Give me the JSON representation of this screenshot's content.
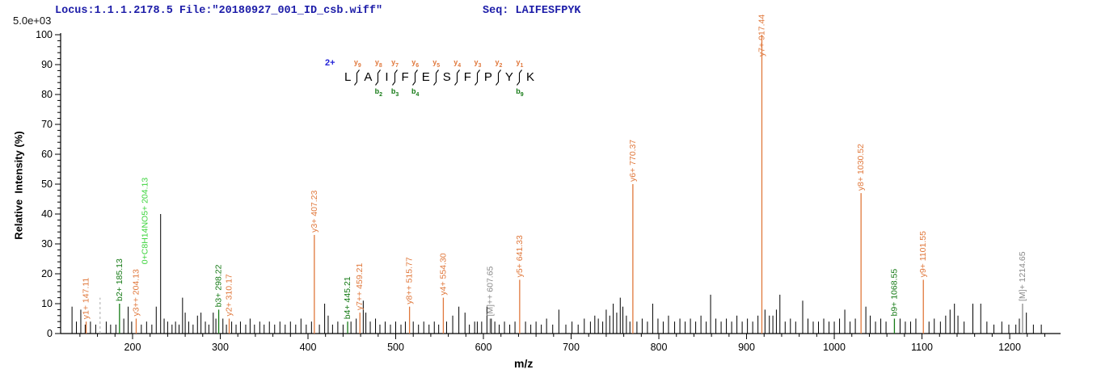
{
  "header": {
    "locus_file": "Locus:1.1.1.2178.5 File:\"20180927_001_ID_csb.wiff\"",
    "seq_label": "Seq: LAIFESFPYK",
    "base_peak_intensity": "5.0e+03"
  },
  "peptide": {
    "charge_label": "2+",
    "residues": [
      "L",
      "A",
      "I",
      "F",
      "E",
      "S",
      "F",
      "P",
      "Y",
      "K"
    ],
    "gaps": [
      {
        "y": "y9",
        "b": null
      },
      {
        "y": "y8",
        "b": "b2"
      },
      {
        "y": "y7",
        "b": "b3"
      },
      {
        "y": "y6",
        "b": "b4"
      },
      {
        "y": "y5",
        "b": null
      },
      {
        "y": "y4",
        "b": null
      },
      {
        "y": "y3",
        "b": null
      },
      {
        "y": "y2",
        "b": null
      },
      {
        "y": "y1",
        "b": "b9"
      }
    ]
  },
  "colors": {
    "y_ion": "#e0783c",
    "b_ion": "#157a15",
    "formula_ion": "#3ed43e",
    "precursor": "#8a8a8a",
    "noise": "#000000",
    "axis": "#000000",
    "header_text": "#1c1ca8",
    "charge": "#2424d8"
  },
  "chart_data": {
    "type": "bar",
    "subtype": "ms2-peptide-fragmentation-spectrum",
    "title": "MS/MS spectrum of peptide LAIFESFPYK (2+)",
    "xlabel": "m/z",
    "ylabel": "Relative  Intensity (%)",
    "xlim": [
      118,
      1258
    ],
    "ylim": [
      0,
      100
    ],
    "x_major_ticks": [
      200,
      300,
      400,
      500,
      600,
      700,
      800,
      900,
      1000,
      1100,
      1200
    ],
    "x_minor_step": 20,
    "y_major_step": 10,
    "y_minor_step": 2,
    "grid": false,
    "legend": "none",
    "annotated_peaks": [
      {
        "mz": 147.11,
        "pct": 4,
        "label": "y1+ 147.11",
        "series": "y"
      },
      {
        "mz": 185.13,
        "pct": 10,
        "label": "b2+ 185.13",
        "series": "b"
      },
      {
        "mz": 204.13,
        "pct": 5,
        "label": "y3++ 204.13",
        "series": "y",
        "label2": "0+C8H14NO5+ 204.13",
        "label2_series": "formula"
      },
      {
        "mz": 298.22,
        "pct": 8,
        "label": "b3+ 298.22",
        "series": "b"
      },
      {
        "mz": 310.17,
        "pct": 5,
        "label": "y2+ 310.17",
        "series": "y"
      },
      {
        "mz": 407.23,
        "pct": 33,
        "label": "y3+ 407.23",
        "series": "y"
      },
      {
        "mz": 445.21,
        "pct": 4,
        "label": "b4+ 445.21",
        "series": "b"
      },
      {
        "mz": 459.21,
        "pct": 7,
        "label": "y7++ 459.21",
        "series": "y"
      },
      {
        "mz": 515.77,
        "pct": 9,
        "label": "y8++ 515.77",
        "series": "y"
      },
      {
        "mz": 554.3,
        "pct": 12,
        "label": "y4+ 554.30",
        "series": "y"
      },
      {
        "mz": 607.65,
        "pct": 5,
        "label": "[M]++ 607.65",
        "series": "precursor"
      },
      {
        "mz": 641.33,
        "pct": 18,
        "label": "y5+ 641.33",
        "series": "y"
      },
      {
        "mz": 770.37,
        "pct": 50,
        "label": "y6+ 770.37",
        "series": "y"
      },
      {
        "mz": 917.44,
        "pct": 100,
        "label": "y7+ 917.44",
        "series": "y"
      },
      {
        "mz": 1030.52,
        "pct": 47,
        "label": "y8+ 1030.52",
        "series": "y"
      },
      {
        "mz": 1068.55,
        "pct": 5,
        "label": "b9+ 1068.55",
        "series": "b"
      },
      {
        "mz": 1101.55,
        "pct": 18,
        "label": "y9+ 1101.55",
        "series": "y"
      },
      {
        "mz": 1214.65,
        "pct": 10,
        "label": "[M]+ 1214.65",
        "series": "precursor"
      }
    ],
    "dashed_marker": {
      "mz": 163,
      "pct": 12
    },
    "noise_peaks": [
      [
        131,
        9
      ],
      [
        136,
        4
      ],
      [
        141,
        8
      ],
      [
        146,
        3
      ],
      [
        152,
        4
      ],
      [
        158,
        3
      ],
      [
        170,
        4
      ],
      [
        175,
        3
      ],
      [
        181,
        3
      ],
      [
        190,
        5
      ],
      [
        195,
        9
      ],
      [
        199,
        4
      ],
      [
        210,
        3
      ],
      [
        216,
        4
      ],
      [
        222,
        3
      ],
      [
        227,
        9
      ],
      [
        232,
        40
      ],
      [
        236,
        5
      ],
      [
        240,
        4
      ],
      [
        245,
        3
      ],
      [
        249,
        4
      ],
      [
        253,
        3
      ],
      [
        257,
        12
      ],
      [
        260,
        7
      ],
      [
        264,
        4
      ],
      [
        269,
        3
      ],
      [
        274,
        6
      ],
      [
        278,
        7
      ],
      [
        283,
        4
      ],
      [
        287,
        3
      ],
      [
        292,
        7
      ],
      [
        295,
        5
      ],
      [
        303,
        5
      ],
      [
        307,
        3
      ],
      [
        313,
        4
      ],
      [
        318,
        3
      ],
      [
        323,
        4
      ],
      [
        329,
        3
      ],
      [
        334,
        5
      ],
      [
        339,
        3
      ],
      [
        345,
        4
      ],
      [
        350,
        3
      ],
      [
        356,
        4
      ],
      [
        362,
        3
      ],
      [
        368,
        4
      ],
      [
        374,
        3
      ],
      [
        380,
        4
      ],
      [
        386,
        3
      ],
      [
        392,
        5
      ],
      [
        398,
        3
      ],
      [
        404,
        4
      ],
      [
        413,
        3
      ],
      [
        419,
        10
      ],
      [
        423,
        6
      ],
      [
        428,
        3
      ],
      [
        434,
        4
      ],
      [
        440,
        3
      ],
      [
        449,
        4
      ],
      [
        455,
        5
      ],
      [
        463,
        11
      ],
      [
        466,
        7
      ],
      [
        471,
        4
      ],
      [
        477,
        5
      ],
      [
        482,
        3
      ],
      [
        488,
        4
      ],
      [
        494,
        3
      ],
      [
        500,
        4
      ],
      [
        506,
        3
      ],
      [
        511,
        4
      ],
      [
        520,
        4
      ],
      [
        526,
        3
      ],
      [
        532,
        4
      ],
      [
        538,
        3
      ],
      [
        544,
        4
      ],
      [
        549,
        3
      ],
      [
        558,
        4
      ],
      [
        565,
        6
      ],
      [
        572,
        9
      ],
      [
        579,
        7
      ],
      [
        584,
        3
      ],
      [
        590,
        4
      ],
      [
        593,
        4
      ],
      [
        598,
        4
      ],
      [
        604,
        9
      ],
      [
        609,
        5
      ],
      [
        613,
        4
      ],
      [
        618,
        3
      ],
      [
        624,
        4
      ],
      [
        630,
        3
      ],
      [
        636,
        4
      ],
      [
        648,
        4
      ],
      [
        654,
        3
      ],
      [
        660,
        4
      ],
      [
        666,
        3
      ],
      [
        672,
        5
      ],
      [
        679,
        3
      ],
      [
        686,
        8
      ],
      [
        694,
        3
      ],
      [
        701,
        4
      ],
      [
        708,
        3
      ],
      [
        715,
        5
      ],
      [
        722,
        4
      ],
      [
        727,
        6
      ],
      [
        731,
        5
      ],
      [
        736,
        4
      ],
      [
        740,
        8
      ],
      [
        744,
        6
      ],
      [
        748,
        10
      ],
      [
        752,
        7
      ],
      [
        756,
        12
      ],
      [
        759,
        9
      ],
      [
        763,
        6
      ],
      [
        767,
        4
      ],
      [
        775,
        4
      ],
      [
        781,
        5
      ],
      [
        787,
        4
      ],
      [
        793,
        10
      ],
      [
        799,
        5
      ],
      [
        805,
        4
      ],
      [
        811,
        6
      ],
      [
        818,
        4
      ],
      [
        824,
        5
      ],
      [
        830,
        4
      ],
      [
        836,
        5
      ],
      [
        842,
        4
      ],
      [
        848,
        6
      ],
      [
        854,
        4
      ],
      [
        859,
        13
      ],
      [
        865,
        5
      ],
      [
        871,
        4
      ],
      [
        877,
        5
      ],
      [
        883,
        4
      ],
      [
        889,
        6
      ],
      [
        895,
        4
      ],
      [
        901,
        5
      ],
      [
        907,
        4
      ],
      [
        913,
        6
      ],
      [
        921,
        8
      ],
      [
        926,
        6
      ],
      [
        930,
        6
      ],
      [
        934,
        8
      ],
      [
        938,
        13
      ],
      [
        944,
        4
      ],
      [
        950,
        5
      ],
      [
        956,
        4
      ],
      [
        964,
        11
      ],
      [
        970,
        5
      ],
      [
        976,
        4
      ],
      [
        982,
        4
      ],
      [
        988,
        5
      ],
      [
        994,
        4
      ],
      [
        1000,
        4
      ],
      [
        1006,
        5
      ],
      [
        1012,
        8
      ],
      [
        1018,
        4
      ],
      [
        1024,
        5
      ],
      [
        1036,
        9
      ],
      [
        1041,
        6
      ],
      [
        1047,
        4
      ],
      [
        1053,
        5
      ],
      [
        1059,
        4
      ],
      [
        1075,
        5
      ],
      [
        1081,
        4
      ],
      [
        1087,
        4
      ],
      [
        1093,
        5
      ],
      [
        1108,
        4
      ],
      [
        1114,
        5
      ],
      [
        1121,
        4
      ],
      [
        1127,
        6
      ],
      [
        1132,
        8
      ],
      [
        1137,
        10
      ],
      [
        1141,
        6
      ],
      [
        1148,
        4
      ],
      [
        1158,
        10
      ],
      [
        1167,
        10
      ],
      [
        1174,
        4
      ],
      [
        1182,
        3
      ],
      [
        1191,
        4
      ],
      [
        1199,
        3
      ],
      [
        1207,
        3
      ],
      [
        1211,
        5
      ],
      [
        1219,
        7
      ],
      [
        1227,
        3
      ],
      [
        1236,
        3
      ]
    ]
  }
}
